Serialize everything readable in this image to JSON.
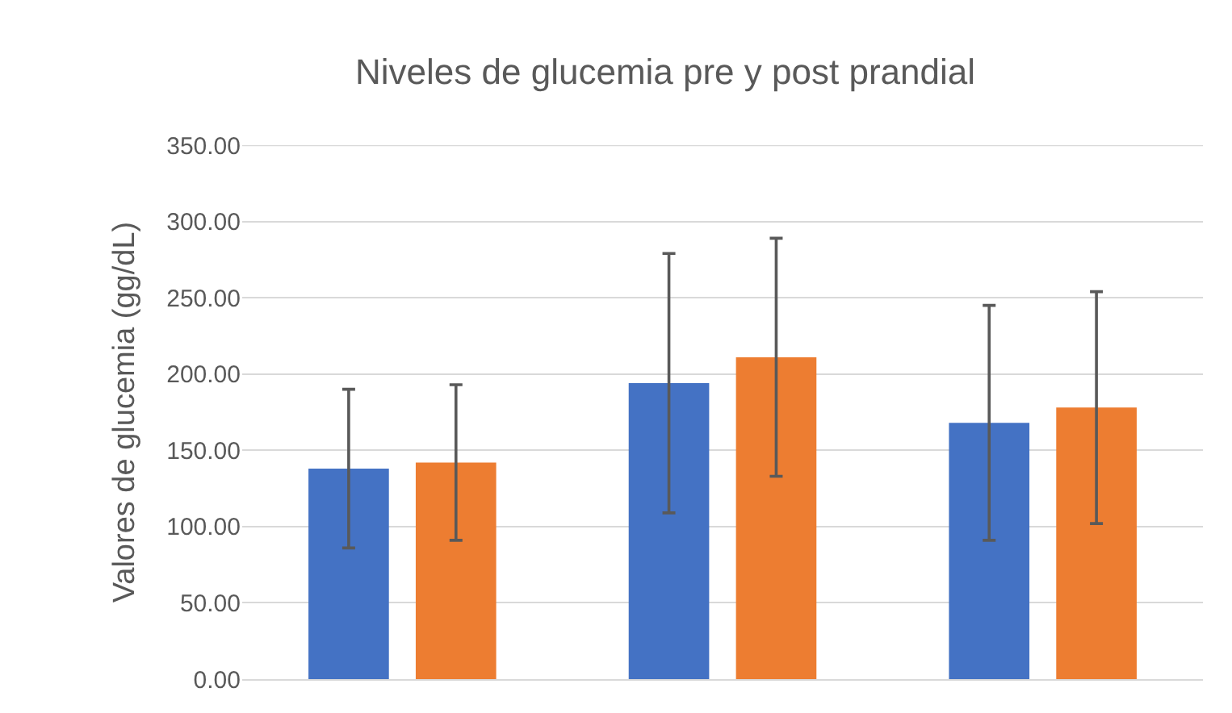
{
  "chart_data": {
    "type": "bar",
    "title": "Niveles de glucemia pre y post prandial",
    "ylabel": "Valores de glucemia (gg/dL)",
    "categories": [
      null,
      null,
      null
    ],
    "series": [
      {
        "color": "#4472c4",
        "values": [
          138,
          194,
          168
        ],
        "errors": [
          52,
          85,
          77
        ]
      },
      {
        "color": "#ed7d31",
        "values": [
          142,
          211,
          178
        ],
        "errors": [
          51,
          78,
          76
        ]
      }
    ],
    "ylim": [
      0,
      350
    ],
    "yticks": [
      {
        "value": 0,
        "label": "0.00"
      },
      {
        "value": 50,
        "label": "50.00"
      },
      {
        "value": 100,
        "label": "100.00"
      },
      {
        "value": 150,
        "label": "150.00"
      },
      {
        "value": 200,
        "label": "200.00"
      },
      {
        "value": 250,
        "label": "250.00"
      },
      {
        "value": 300,
        "label": "300.00"
      },
      {
        "value": 350,
        "label": "350.00"
      }
    ],
    "grid": "y"
  }
}
